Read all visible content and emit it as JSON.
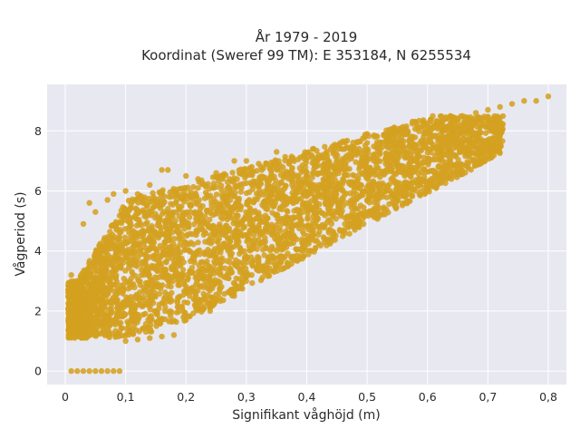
{
  "chart_data": {
    "type": "scatter",
    "title_line1": "År 1979 - 2019",
    "title_line2": "Koordinat (Sweref 99 TM): E 353184, N 6255534",
    "xlabel": "Signifikant våghöjd (m)",
    "ylabel": "Vågperiod (s)",
    "xlim": [
      -0.03,
      0.83
    ],
    "ylim": [
      -0.45,
      9.55
    ],
    "x_ticks": [
      0,
      0.1,
      0.2,
      0.3,
      0.4,
      0.5,
      0.6,
      0.7,
      0.8
    ],
    "x_tick_labels": [
      "0",
      "0,1",
      "0,2",
      "0,3",
      "0,4",
      "0,5",
      "0,6",
      "0,7",
      "0,8"
    ],
    "y_ticks": [
      0,
      2,
      4,
      6,
      8
    ],
    "y_tick_labels": [
      "0",
      "2",
      "4",
      "6",
      "8"
    ],
    "grid": true,
    "colors": {
      "marker": "#d4a020",
      "plot_background": "#e8e8f1",
      "grid": "#ffffff"
    },
    "series": [
      {
        "points": [
          [
            0.01,
            0.0
          ],
          [
            0.02,
            0.0
          ],
          [
            0.03,
            0.0
          ],
          [
            0.04,
            0.0
          ],
          [
            0.05,
            0.0
          ],
          [
            0.06,
            0.0
          ],
          [
            0.07,
            0.0
          ],
          [
            0.08,
            0.0
          ],
          [
            0.09,
            0.0
          ],
          [
            0.01,
            3.2
          ],
          [
            0.03,
            4.9
          ],
          [
            0.04,
            5.6
          ],
          [
            0.05,
            5.3
          ],
          [
            0.07,
            5.7
          ],
          [
            0.08,
            5.9
          ],
          [
            0.1,
            6.0
          ],
          [
            0.12,
            5.9
          ],
          [
            0.14,
            6.2
          ],
          [
            0.16,
            6.7
          ],
          [
            0.17,
            6.7
          ],
          [
            0.2,
            6.5
          ],
          [
            0.22,
            6.4
          ],
          [
            0.25,
            6.6
          ],
          [
            0.28,
            7.0
          ],
          [
            0.3,
            7.0
          ],
          [
            0.35,
            7.3
          ],
          [
            0.41,
            7.4
          ],
          [
            0.5,
            7.6
          ],
          [
            0.57,
            7.7
          ],
          [
            0.44,
            7.4
          ],
          [
            0.5,
            7.9
          ],
          [
            0.58,
            8.3
          ],
          [
            0.62,
            8.2
          ],
          [
            0.65,
            8.4
          ],
          [
            0.68,
            8.6
          ],
          [
            0.7,
            8.7
          ],
          [
            0.72,
            8.8
          ],
          [
            0.74,
            8.9
          ],
          [
            0.76,
            9.0
          ],
          [
            0.78,
            9.0
          ],
          [
            0.8,
            9.15
          ],
          [
            0.1,
            1.0
          ],
          [
            0.12,
            1.05
          ],
          [
            0.14,
            1.1
          ],
          [
            0.16,
            1.15
          ],
          [
            0.18,
            1.2
          ],
          [
            0.2,
            1.7
          ],
          [
            0.24,
            2.0
          ],
          [
            0.28,
            2.5
          ],
          [
            0.3,
            3.0
          ],
          [
            0.35,
            4.0
          ],
          [
            0.42,
            4.8
          ],
          [
            0.5,
            5.7
          ],
          [
            0.56,
            6.1
          ]
        ]
      }
    ]
  }
}
